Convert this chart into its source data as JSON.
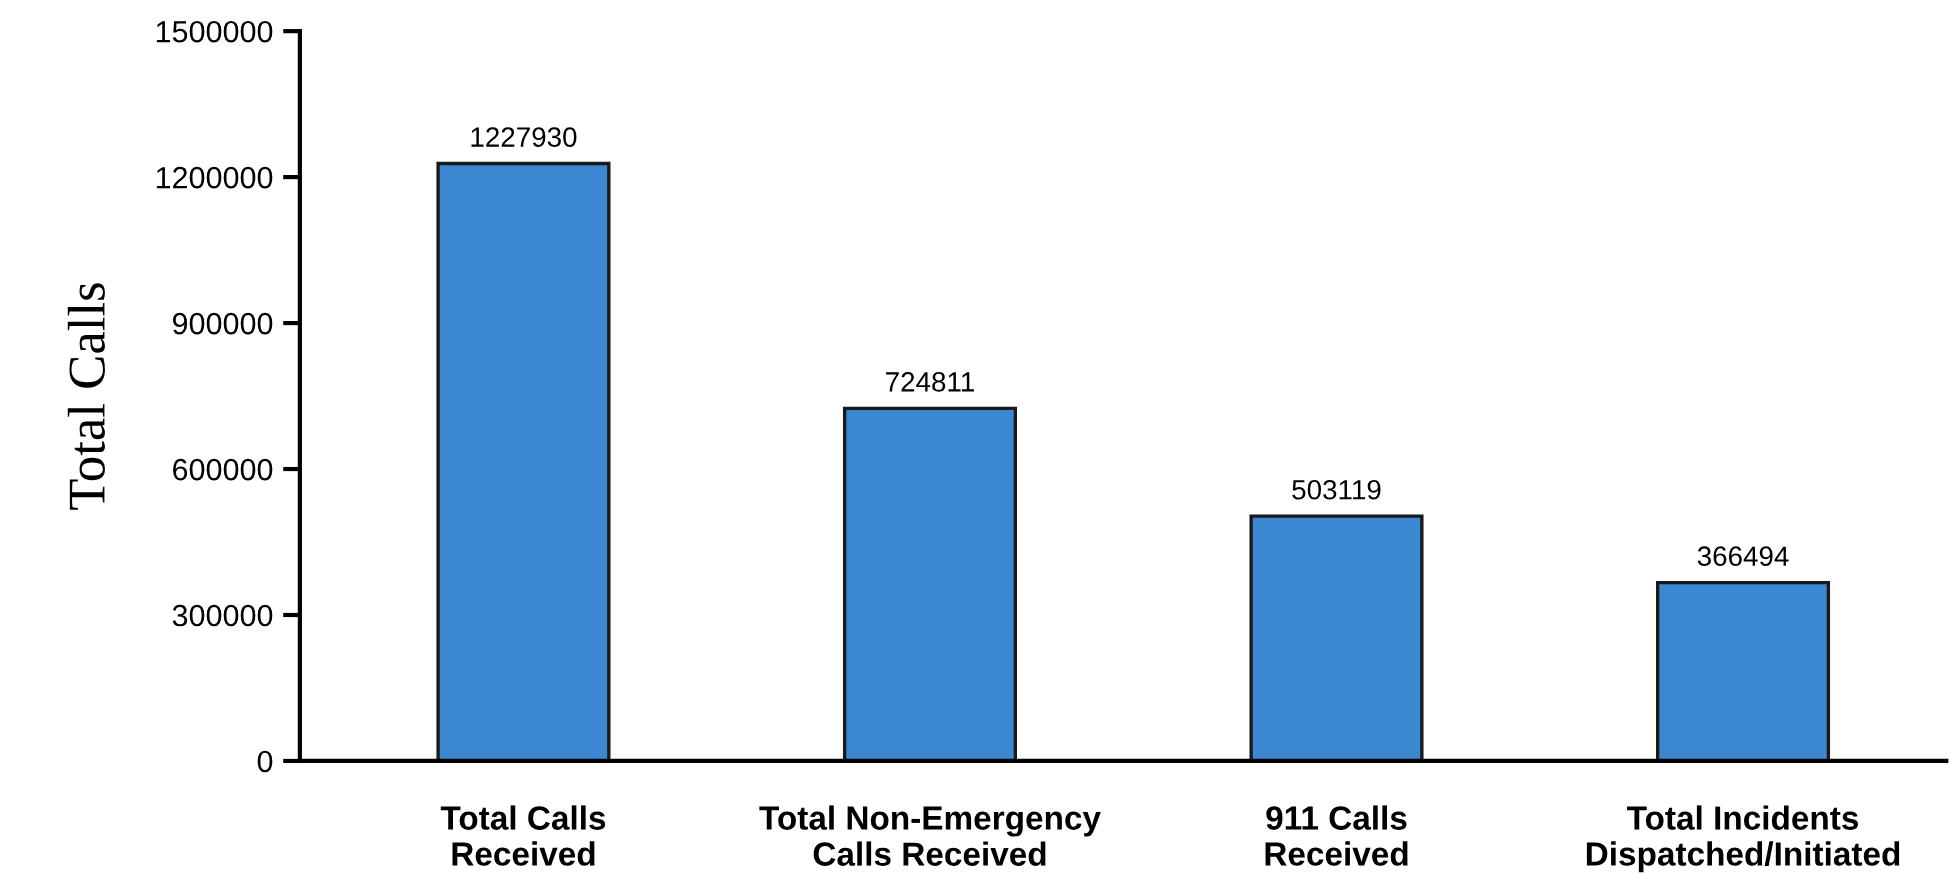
{
  "chart_data": {
    "type": "bar",
    "ylabel": "Total Calls",
    "categories": [
      "Total Calls\nReceived",
      "Total Non-Emergency\nCalls Received",
      "911 Calls\nReceived",
      "Total Incidents\nDispatched/Initiated"
    ],
    "values": [
      1227930,
      724811,
      503119,
      366494
    ],
    "color": "#3b87d0",
    "ylim": [
      0,
      1500000
    ],
    "yticks": [
      0,
      300000,
      600000,
      900000,
      1200000,
      1500000
    ],
    "grid": false,
    "data_labels": true
  }
}
